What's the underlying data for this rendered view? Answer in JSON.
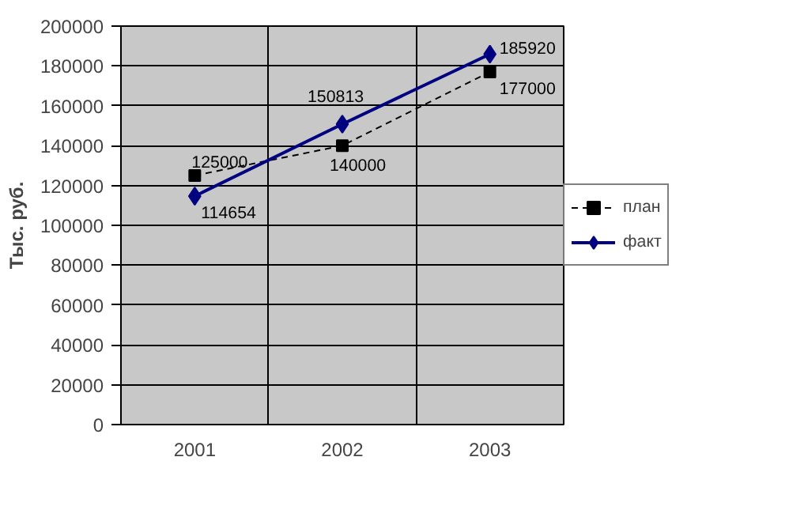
{
  "chart_data": {
    "type": "line",
    "ylabel": "Тыс. руб.",
    "categories": [
      "2001",
      "2002",
      "2003"
    ],
    "series": [
      {
        "name": "план",
        "color": "#000000",
        "values": [
          125000,
          140000,
          177000
        ],
        "marker": "square",
        "line_style": "dashed"
      },
      {
        "name": "факт",
        "color": "#000080",
        "values": [
          114654,
          150813,
          185920
        ],
        "marker": "diamond",
        "line_style": "solid"
      }
    ],
    "ylim": [
      0,
      200000
    ],
    "yticks": [
      0,
      20000,
      40000,
      60000,
      80000,
      100000,
      120000,
      140000,
      160000,
      180000,
      200000
    ],
    "grid": true,
    "legend": "right",
    "data_labels": true
  }
}
